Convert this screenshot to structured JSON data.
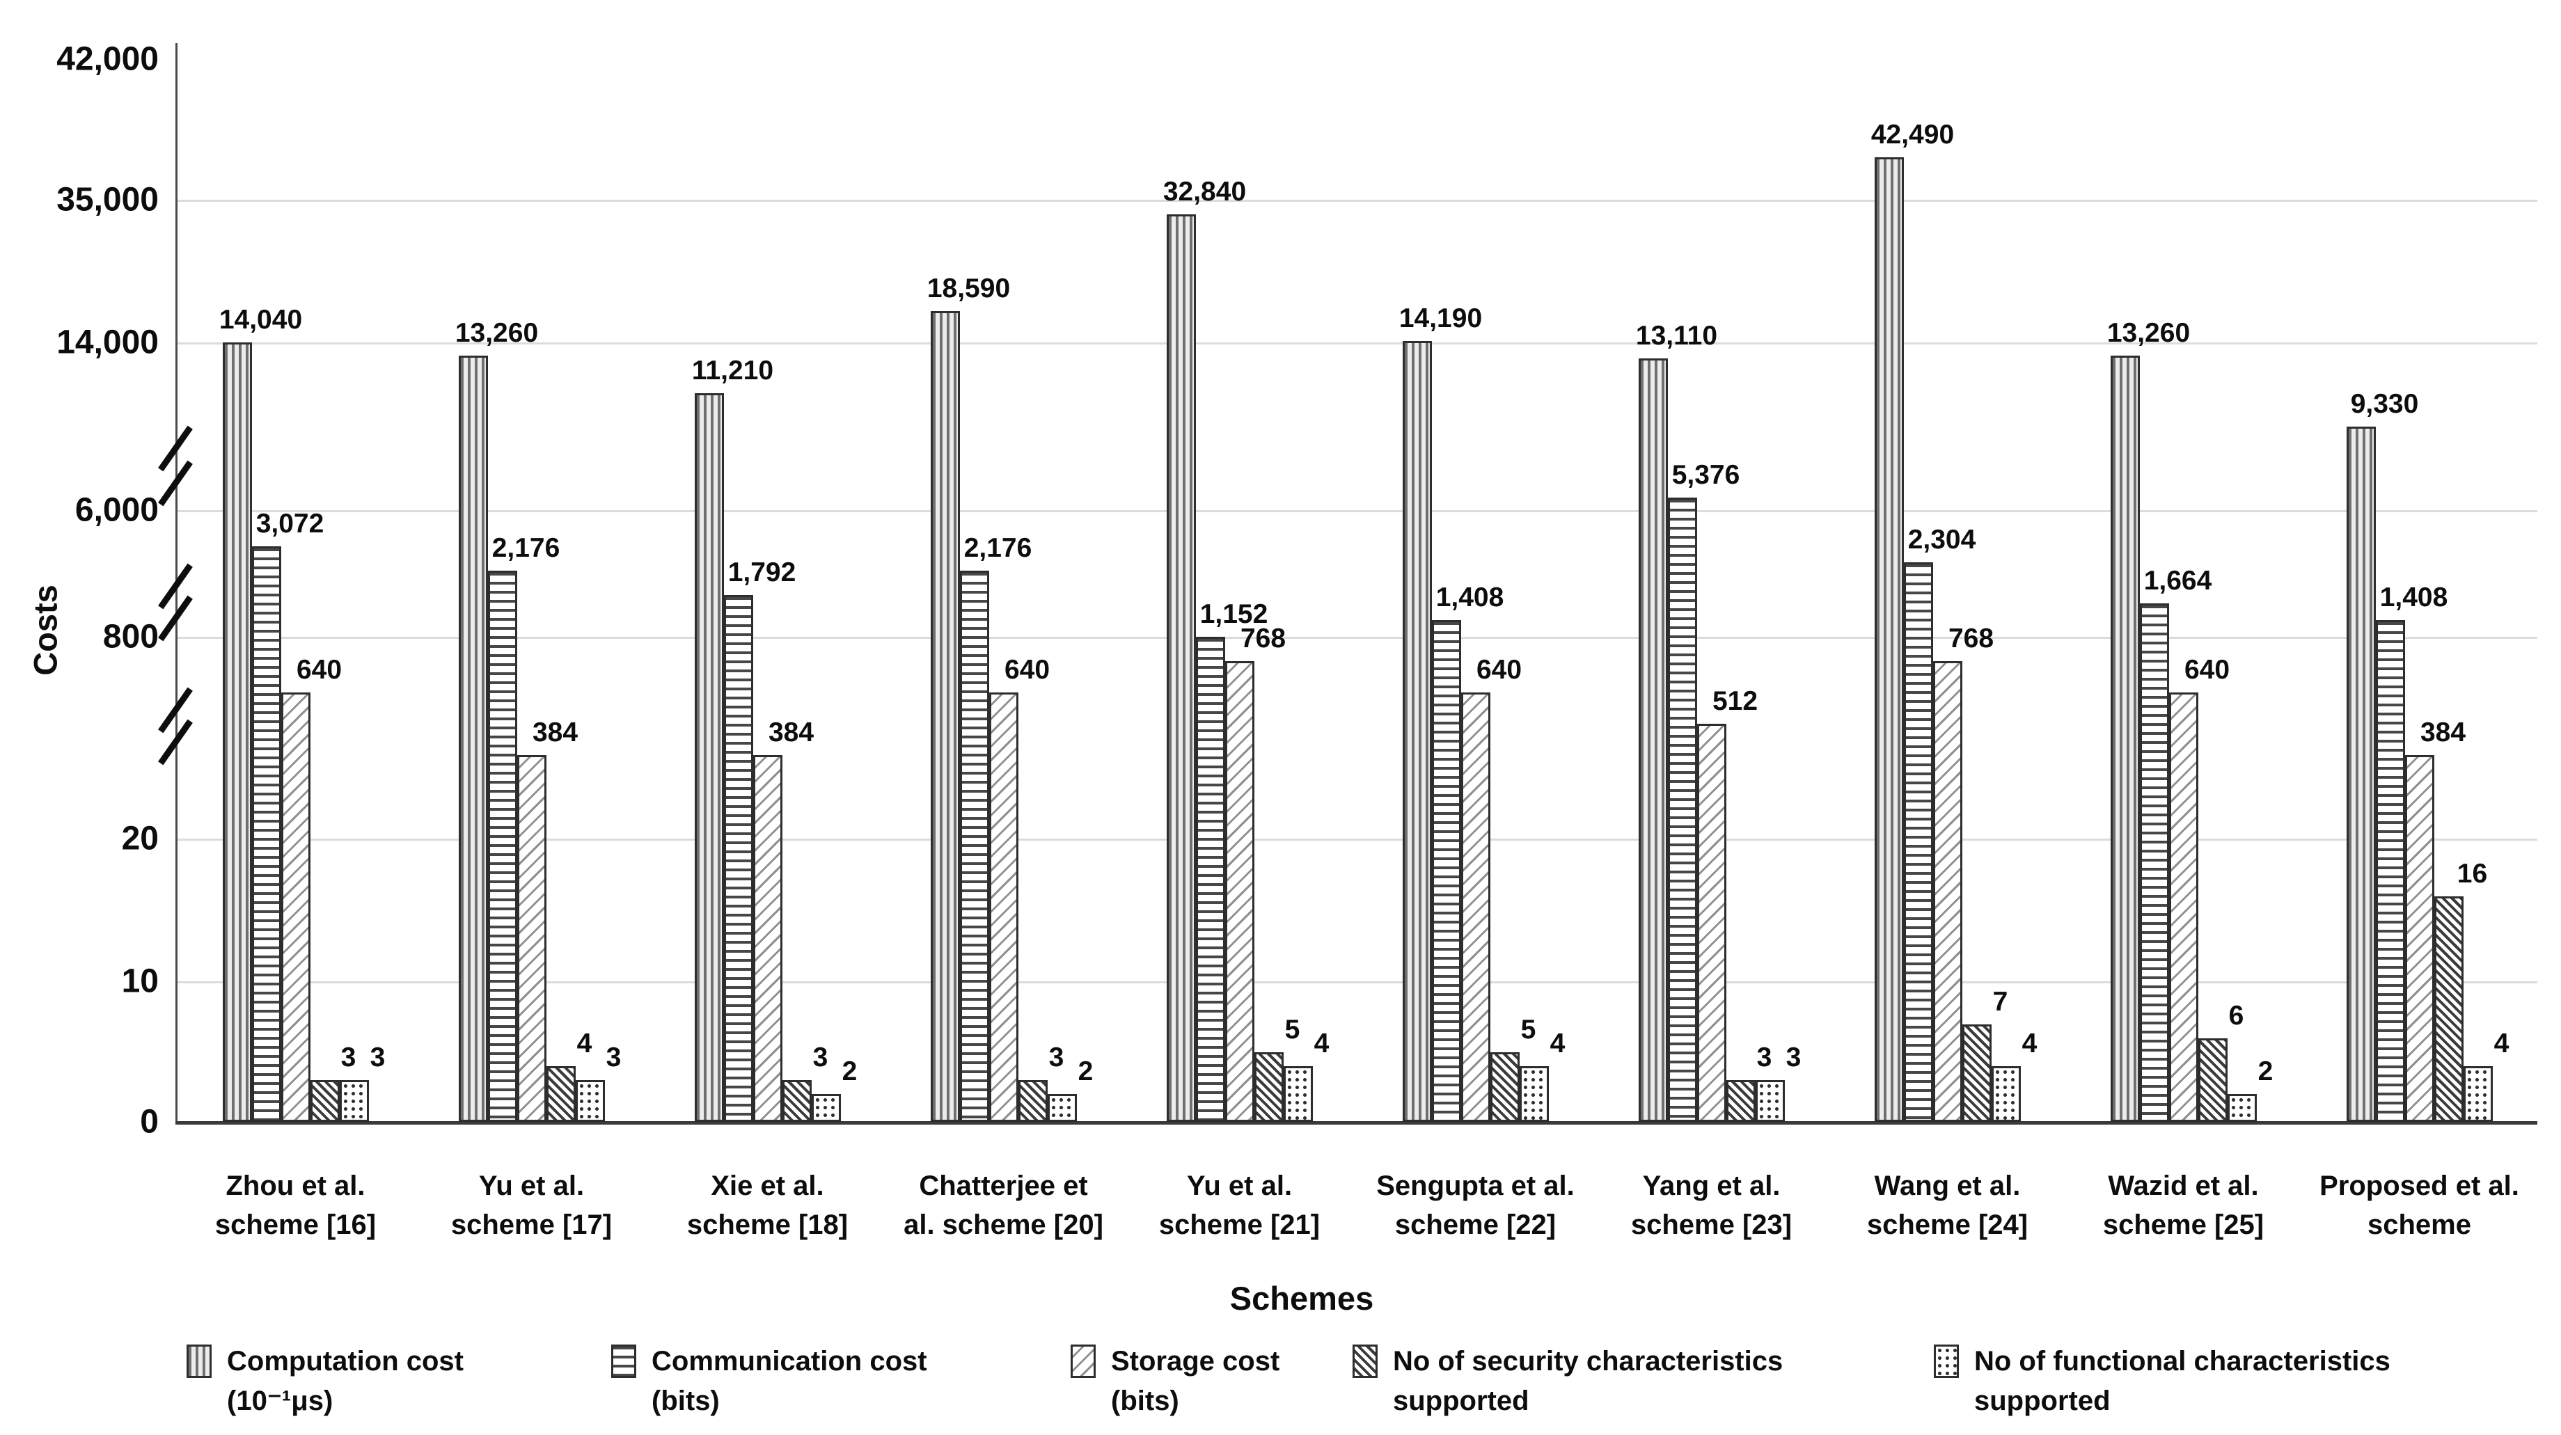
{
  "figure": {
    "ylabel": "Costs",
    "xlabel": "Schemes",
    "y_tick_labels": [
      "42,000",
      "35,000",
      "14,000",
      "6,000",
      "800",
      "20",
      "10",
      "0"
    ],
    "colors": {
      "gridline": "#dcdcdc",
      "axis": "#3a3a3a",
      "text": "#0d0d0d",
      "bar_fill": "#ffffff",
      "bar_stroke": "#2d2d2d"
    }
  },
  "chart_data": {
    "type": "bar",
    "title": "",
    "xlabel": "Schemes",
    "ylabel": "Costs",
    "axis_breaks": true,
    "y_ticks": [
      {
        "label": "42,000",
        "value": 42000
      },
      {
        "label": "35,000",
        "value": 35000
      },
      {
        "label": "14,000",
        "value": 14000
      },
      {
        "label": "6,000",
        "value": 6000
      },
      {
        "label": "800",
        "value": 800
      },
      {
        "label": "20",
        "value": 20
      },
      {
        "label": "10",
        "value": 10
      },
      {
        "label": "0",
        "value": 0
      }
    ],
    "categories": [
      {
        "line1": "Zhou et al.",
        "line2": "scheme [16]"
      },
      {
        "line1": "Yu et al.",
        "line2": "scheme [17]"
      },
      {
        "line1": "Xie et al.",
        "line2": "scheme [18]"
      },
      {
        "line1": "Chatterjee et",
        "line2": "al. scheme [20]"
      },
      {
        "line1": "Yu et al.",
        "line2": "scheme [21]"
      },
      {
        "line1": "Sengupta et al.",
        "line2": "scheme [22]"
      },
      {
        "line1": "Yang et al.",
        "line2": "scheme [23]"
      },
      {
        "line1": "Wang et al.",
        "line2": "scheme [24]"
      },
      {
        "line1": "Wazid et al.",
        "line2": "scheme [25]"
      },
      {
        "line1": "Proposed et al.",
        "line2": "scheme"
      }
    ],
    "series": [
      {
        "name": "Computation cost (10⁻¹μs)",
        "legend_line1": "Computation cost",
        "legend_line2": "(10⁻¹μs)",
        "pattern": "vertical-stripes",
        "values": [
          14040,
          13260,
          11210,
          18590,
          32840,
          14190,
          13110,
          42490,
          13260,
          9330
        ],
        "labels": [
          "14,040",
          "13,260",
          "11,210",
          "18,590",
          "32,840",
          "14,190",
          "13,110",
          "42,490",
          "13,260",
          "9,330"
        ]
      },
      {
        "name": "Communication cost (bits)",
        "legend_line1": "Communication cost",
        "legend_line2": "(bits)",
        "pattern": "horizontal-stripes",
        "values": [
          3072,
          2176,
          1792,
          2176,
          1152,
          1408,
          5376,
          2304,
          1664,
          1408
        ],
        "labels": [
          "3,072",
          "2,176",
          "1,792",
          "2,176",
          "1,152",
          "1,408",
          "5,376",
          "2,304",
          "1,664",
          "1,408"
        ]
      },
      {
        "name": "Storage cost (bits)",
        "legend_line1": "Storage cost",
        "legend_line2": "(bits)",
        "pattern": "diagonal-light",
        "values": [
          640,
          384,
          384,
          640,
          768,
          640,
          512,
          768,
          640,
          384
        ],
        "labels": [
          "640",
          "384",
          "384",
          "640",
          "768",
          "640",
          "512",
          "768",
          "640",
          "384"
        ]
      },
      {
        "name": "No of security characteristics supported",
        "legend_line1": "No of security characteristics",
        "legend_line2": "supported",
        "pattern": "diagonal-dense",
        "values": [
          3,
          4,
          3,
          3,
          5,
          5,
          3,
          7,
          6,
          16
        ],
        "labels": [
          "3",
          "4",
          "3",
          "3",
          "5",
          "5",
          "3",
          "7",
          "6",
          "16"
        ]
      },
      {
        "name": "No of functional characteristics supported",
        "legend_line1": "No of functional characteristics",
        "legend_line2": "supported",
        "pattern": "dots",
        "values": [
          3,
          3,
          2,
          2,
          4,
          4,
          3,
          4,
          2,
          4
        ],
        "labels": [
          "3",
          "3",
          "2",
          "2",
          "4",
          "4",
          "3",
          "4",
          "2",
          "4"
        ]
      }
    ],
    "legend_position": "bottom",
    "grid": true
  }
}
